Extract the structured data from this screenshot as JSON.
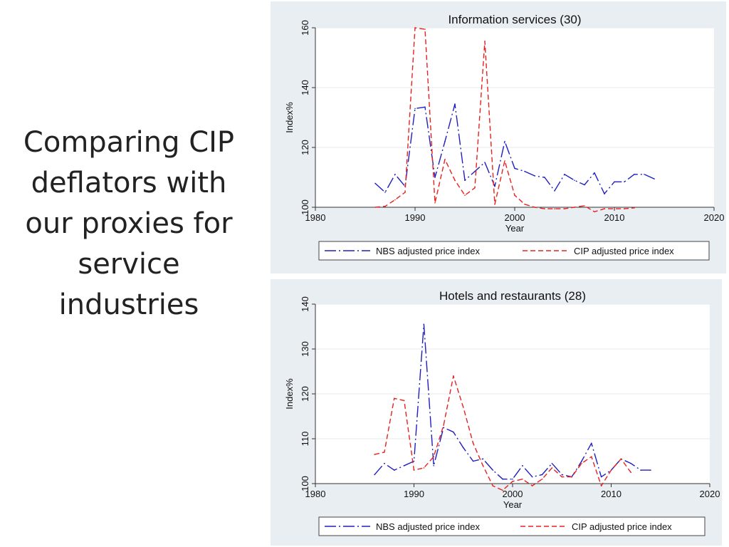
{
  "slide": {
    "title_lines": [
      "Comparing CIP",
      "deflators with",
      "our proxies for",
      "service",
      "industries"
    ]
  },
  "chart_data": [
    {
      "type": "line",
      "title": "Information services (30)",
      "xlabel": "Year",
      "ylabel": "Index%",
      "xlim": [
        1980,
        2020
      ],
      "ylim": [
        100,
        160
      ],
      "xticks": [
        1980,
        1990,
        2000,
        2010,
        2020
      ],
      "yticks": [
        100,
        120,
        140,
        160
      ],
      "grid": true,
      "legend_position": "bottom",
      "series": [
        {
          "name": "NBS adjusted price index",
          "color": "#1f1fbf",
          "style": "dash-dot",
          "x": [
            1986,
            1987,
            1988,
            1989,
            1990,
            1991,
            1992,
            1993,
            1994,
            1995,
            1996,
            1997,
            1998,
            1999,
            2000,
            2001,
            2002,
            2003,
            2004,
            2005,
            2006,
            2007,
            2008,
            2009,
            2010,
            2011,
            2012,
            2013,
            2014
          ],
          "y": [
            108,
            105,
            111,
            107,
            133,
            133.5,
            110,
            122,
            134.5,
            109,
            112,
            115,
            107,
            122,
            113,
            112,
            110.5,
            110,
            105.5,
            111,
            109,
            107.5,
            111.5,
            104.5,
            108.5,
            108.5,
            111,
            111,
            109.5
          ]
        },
        {
          "name": "CIP adjusted price index",
          "color": "#e8211e",
          "style": "dashed",
          "x": [
            1986,
            1987,
            1988,
            1989,
            1990,
            1991,
            1992,
            1993,
            1994,
            1995,
            1996,
            1997,
            1998,
            1999,
            2000,
            2001,
            2002,
            2003,
            2004,
            2005,
            2006,
            2007,
            2008,
            2009,
            2010,
            2011,
            2012
          ],
          "y": [
            100,
            100.3,
            102.5,
            105,
            160,
            159.5,
            101.5,
            116,
            109,
            104,
            106.5,
            155.5,
            101,
            115.5,
            104,
            101,
            100,
            99.5,
            99.5,
            99.5,
            100,
            100.5,
            98.5,
            99.5,
            99.5,
            99.5,
            99.8
          ]
        }
      ]
    },
    {
      "type": "line",
      "title": "Hotels and restaurants (28)",
      "xlabel": "Year",
      "ylabel": "Index%",
      "xlim": [
        1980,
        2020
      ],
      "ylim": [
        100,
        140
      ],
      "xticks": [
        1980,
        1990,
        2000,
        2010,
        2020
      ],
      "yticks": [
        100,
        110,
        120,
        130,
        140
      ],
      "grid": true,
      "legend_position": "bottom",
      "series": [
        {
          "name": "NBS adjusted price index",
          "color": "#1f1fbf",
          "style": "dash-dot",
          "x": [
            1986,
            1987,
            1988,
            1989,
            1990,
            1991,
            1992,
            1993,
            1994,
            1995,
            1996,
            1997,
            1998,
            1999,
            2000,
            2001,
            2002,
            2003,
            2004,
            2005,
            2006,
            2007,
            2008,
            2009,
            2010,
            2011,
            2012,
            2013,
            2014
          ],
          "y": [
            102,
            104.5,
            103,
            104,
            105,
            135.5,
            104,
            112.5,
            111.5,
            108,
            105,
            105.5,
            103,
            101,
            101,
            104,
            101.5,
            102,
            104.5,
            102,
            101.5,
            105,
            109,
            101.5,
            103,
            105.5,
            104.5,
            103,
            103
          ]
        },
        {
          "name": "CIP adjusted price index",
          "color": "#e8211e",
          "style": "dashed",
          "x": [
            1986,
            1987,
            1988,
            1989,
            1990,
            1991,
            1992,
            1993,
            1994,
            1995,
            1996,
            1997,
            1998,
            1999,
            2000,
            2001,
            2002,
            2003,
            2004,
            2005,
            2006,
            2007,
            2008,
            2009,
            2010,
            2011,
            2012
          ],
          "y": [
            106.5,
            107,
            119,
            118.5,
            103,
            103.5,
            106,
            113,
            124,
            117,
            109,
            104,
            99.5,
            98.5,
            100.5,
            101,
            99.5,
            101,
            103.5,
            101.5,
            101.5,
            104.5,
            106,
            99.5,
            103,
            105.5,
            102.5
          ]
        }
      ]
    }
  ]
}
